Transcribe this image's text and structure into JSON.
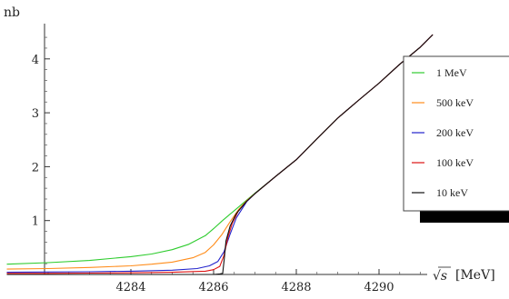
{
  "chart_data": {
    "type": "line",
    "ylabel": "nb",
    "xlabel_math": "√s",
    "xlabel_unit": "[MeV]",
    "xlim": [
      4281.8,
      4291.2
    ],
    "ylim": [
      0,
      4.55
    ],
    "x_axis_crossing": 4281.8,
    "x_ticks": [
      4284,
      4286,
      4288,
      4290
    ],
    "x_tick_labels": [
      "4284",
      "4286",
      "4288",
      "4290"
    ],
    "y_ticks": [
      1,
      2,
      3,
      4
    ],
    "y_tick_labels": [
      "1",
      "2",
      "3",
      "4"
    ],
    "legend_placement": "right",
    "series": [
      {
        "name": "1 MeV",
        "color": "#2ecc2e",
        "x": [
          4281.0,
          4282.0,
          4283.0,
          4284.0,
          4284.5,
          4285.0,
          4285.4,
          4285.8,
          4286.0,
          4286.2,
          4286.4,
          4286.6,
          4286.8,
          4287.0,
          4287.5,
          4288.0,
          4288.5,
          4289.0,
          4289.5,
          4290.0,
          4290.5,
          4291.0,
          4291.3
        ],
        "y": [
          0.19,
          0.22,
          0.26,
          0.33,
          0.38,
          0.46,
          0.56,
          0.72,
          0.85,
          0.99,
          1.12,
          1.25,
          1.38,
          1.51,
          1.82,
          2.13,
          2.52,
          2.9,
          3.23,
          3.55,
          3.9,
          4.22,
          4.45
        ]
      },
      {
        "name": "500 keV",
        "color": "#ff8c1a",
        "x": [
          4281.0,
          4282.0,
          4283.0,
          4284.0,
          4284.5,
          4285.0,
          4285.5,
          4285.8,
          4286.0,
          4286.2,
          4286.4,
          4286.6,
          4286.8,
          4287.0,
          4287.5,
          4288.0,
          4288.5,
          4289.0,
          4289.5,
          4290.0,
          4290.5,
          4291.0,
          4291.3
        ],
        "y": [
          0.1,
          0.11,
          0.13,
          0.16,
          0.19,
          0.23,
          0.31,
          0.41,
          0.55,
          0.74,
          0.98,
          1.2,
          1.37,
          1.5,
          1.82,
          2.13,
          2.52,
          2.9,
          3.23,
          3.55,
          3.9,
          4.22,
          4.45
        ]
      },
      {
        "name": "200 keV",
        "color": "#2222cc",
        "x": [
          4281.0,
          4282.0,
          4283.0,
          4284.0,
          4285.0,
          4285.6,
          4285.9,
          4286.1,
          4286.25,
          4286.4,
          4286.55,
          4286.8,
          4287.0,
          4287.5,
          4288.0,
          4288.5,
          4289.0,
          4289.5,
          4290.0,
          4290.5,
          4291.0,
          4291.3
        ],
        "y": [
          0.04,
          0.045,
          0.05,
          0.06,
          0.08,
          0.11,
          0.16,
          0.24,
          0.42,
          0.75,
          1.05,
          1.35,
          1.5,
          1.82,
          2.13,
          2.52,
          2.9,
          3.23,
          3.55,
          3.9,
          4.22,
          4.45
        ]
      },
      {
        "name": "100 keV",
        "color": "#dd1111",
        "x": [
          4281.0,
          4282.0,
          4283.0,
          4284.0,
          4285.0,
          4285.8,
          4286.0,
          4286.15,
          4286.25,
          4286.35,
          4286.45,
          4286.6,
          4286.8,
          4287.0,
          4287.5,
          4288.0,
          4288.5,
          4289.0,
          4289.5,
          4290.0,
          4290.5,
          4291.0,
          4291.3
        ],
        "y": [
          0.02,
          0.02,
          0.025,
          0.03,
          0.04,
          0.06,
          0.09,
          0.15,
          0.35,
          0.7,
          0.95,
          1.18,
          1.36,
          1.5,
          1.82,
          2.13,
          2.52,
          2.9,
          3.23,
          3.55,
          3.9,
          4.22,
          4.45
        ]
      },
      {
        "name": "10 keV",
        "color": "#111111",
        "x": [
          4281.0,
          4282.0,
          4283.0,
          4284.0,
          4285.0,
          4286.0,
          4286.15,
          4286.22,
          4286.26,
          4286.3,
          4286.4,
          4286.55,
          4286.8,
          4287.0,
          4287.5,
          4288.0,
          4288.5,
          4289.0,
          4289.5,
          4290.0,
          4290.5,
          4291.0,
          4291.3
        ],
        "y": [
          0.0,
          0.0,
          0.0,
          0.0,
          0.0,
          0.0,
          0.01,
          0.02,
          0.3,
          0.62,
          0.9,
          1.13,
          1.36,
          1.5,
          1.82,
          2.13,
          2.52,
          2.9,
          3.23,
          3.55,
          3.9,
          4.22,
          4.45
        ]
      }
    ]
  }
}
